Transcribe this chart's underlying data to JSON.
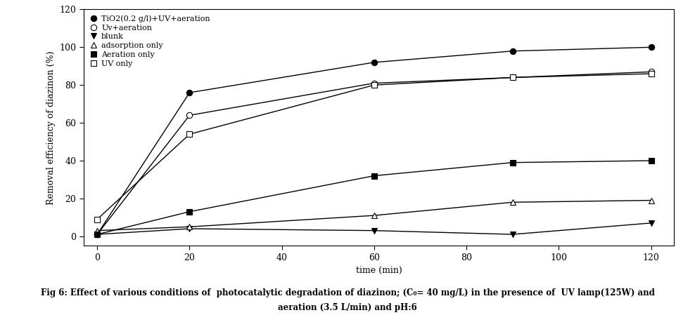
{
  "title": "",
  "xlabel": "time (min)",
  "ylabel": "Removal efficiency of diazinon (%)",
  "xlim": [
    -3,
    125
  ],
  "ylim": [
    -5,
    120
  ],
  "xticks": [
    0,
    20,
    40,
    60,
    80,
    100,
    120
  ],
  "yticks": [
    0,
    20,
    40,
    60,
    80,
    100,
    120
  ],
  "caption_line1": "Fig 6: Effect of various conditions of  photocatalytic degradation of diazinon; (C",
  "caption_sub": "0",
  "caption_line1b": "= 40 mg/L) in the presence of  UV lamp(125W) and",
  "caption_line2": "aeration (3.5 L/min) and pH:6",
  "series": [
    {
      "label": "TiO2(0.2 g/l)+UV+aeration",
      "x": [
        0,
        20,
        60,
        90,
        120
      ],
      "y": [
        1,
        76,
        92,
        98,
        100
      ],
      "marker": "o",
      "markerfacecolor": "black",
      "markeredgecolor": "black",
      "markersize": 6,
      "color": "black",
      "linestyle": "-"
    },
    {
      "label": "Uv+aeration",
      "x": [
        0,
        20,
        60,
        90,
        120
      ],
      "y": [
        1,
        64,
        81,
        84,
        87
      ],
      "marker": "o",
      "markerfacecolor": "white",
      "markeredgecolor": "black",
      "markersize": 6,
      "color": "black",
      "linestyle": "-"
    },
    {
      "label": "blunk",
      "x": [
        0,
        20,
        60,
        90,
        120
      ],
      "y": [
        1,
        4,
        3,
        1,
        7
      ],
      "marker": "v",
      "markerfacecolor": "black",
      "markeredgecolor": "black",
      "markersize": 6,
      "color": "black",
      "linestyle": "-"
    },
    {
      "label": "adsorption only",
      "x": [
        0,
        20,
        60,
        90,
        120
      ],
      "y": [
        3,
        5,
        11,
        18,
        19
      ],
      "marker": "^",
      "markerfacecolor": "white",
      "markeredgecolor": "black",
      "markersize": 6,
      "color": "black",
      "linestyle": "-"
    },
    {
      "label": "Aeration only",
      "x": [
        0,
        20,
        60,
        90,
        120
      ],
      "y": [
        1,
        13,
        32,
        39,
        40
      ],
      "marker": "s",
      "markerfacecolor": "black",
      "markeredgecolor": "black",
      "markersize": 6,
      "color": "black",
      "linestyle": "-"
    },
    {
      "label": "UV only",
      "x": [
        0,
        20,
        60,
        90,
        120
      ],
      "y": [
        9,
        54,
        80,
        84,
        86
      ],
      "marker": "s",
      "markerfacecolor": "white",
      "markeredgecolor": "black",
      "markersize": 6,
      "color": "black",
      "linestyle": "-"
    }
  ],
  "figsize": [
    9.88,
    4.49
  ],
  "dpi": 100,
  "background_color": "#ffffff"
}
